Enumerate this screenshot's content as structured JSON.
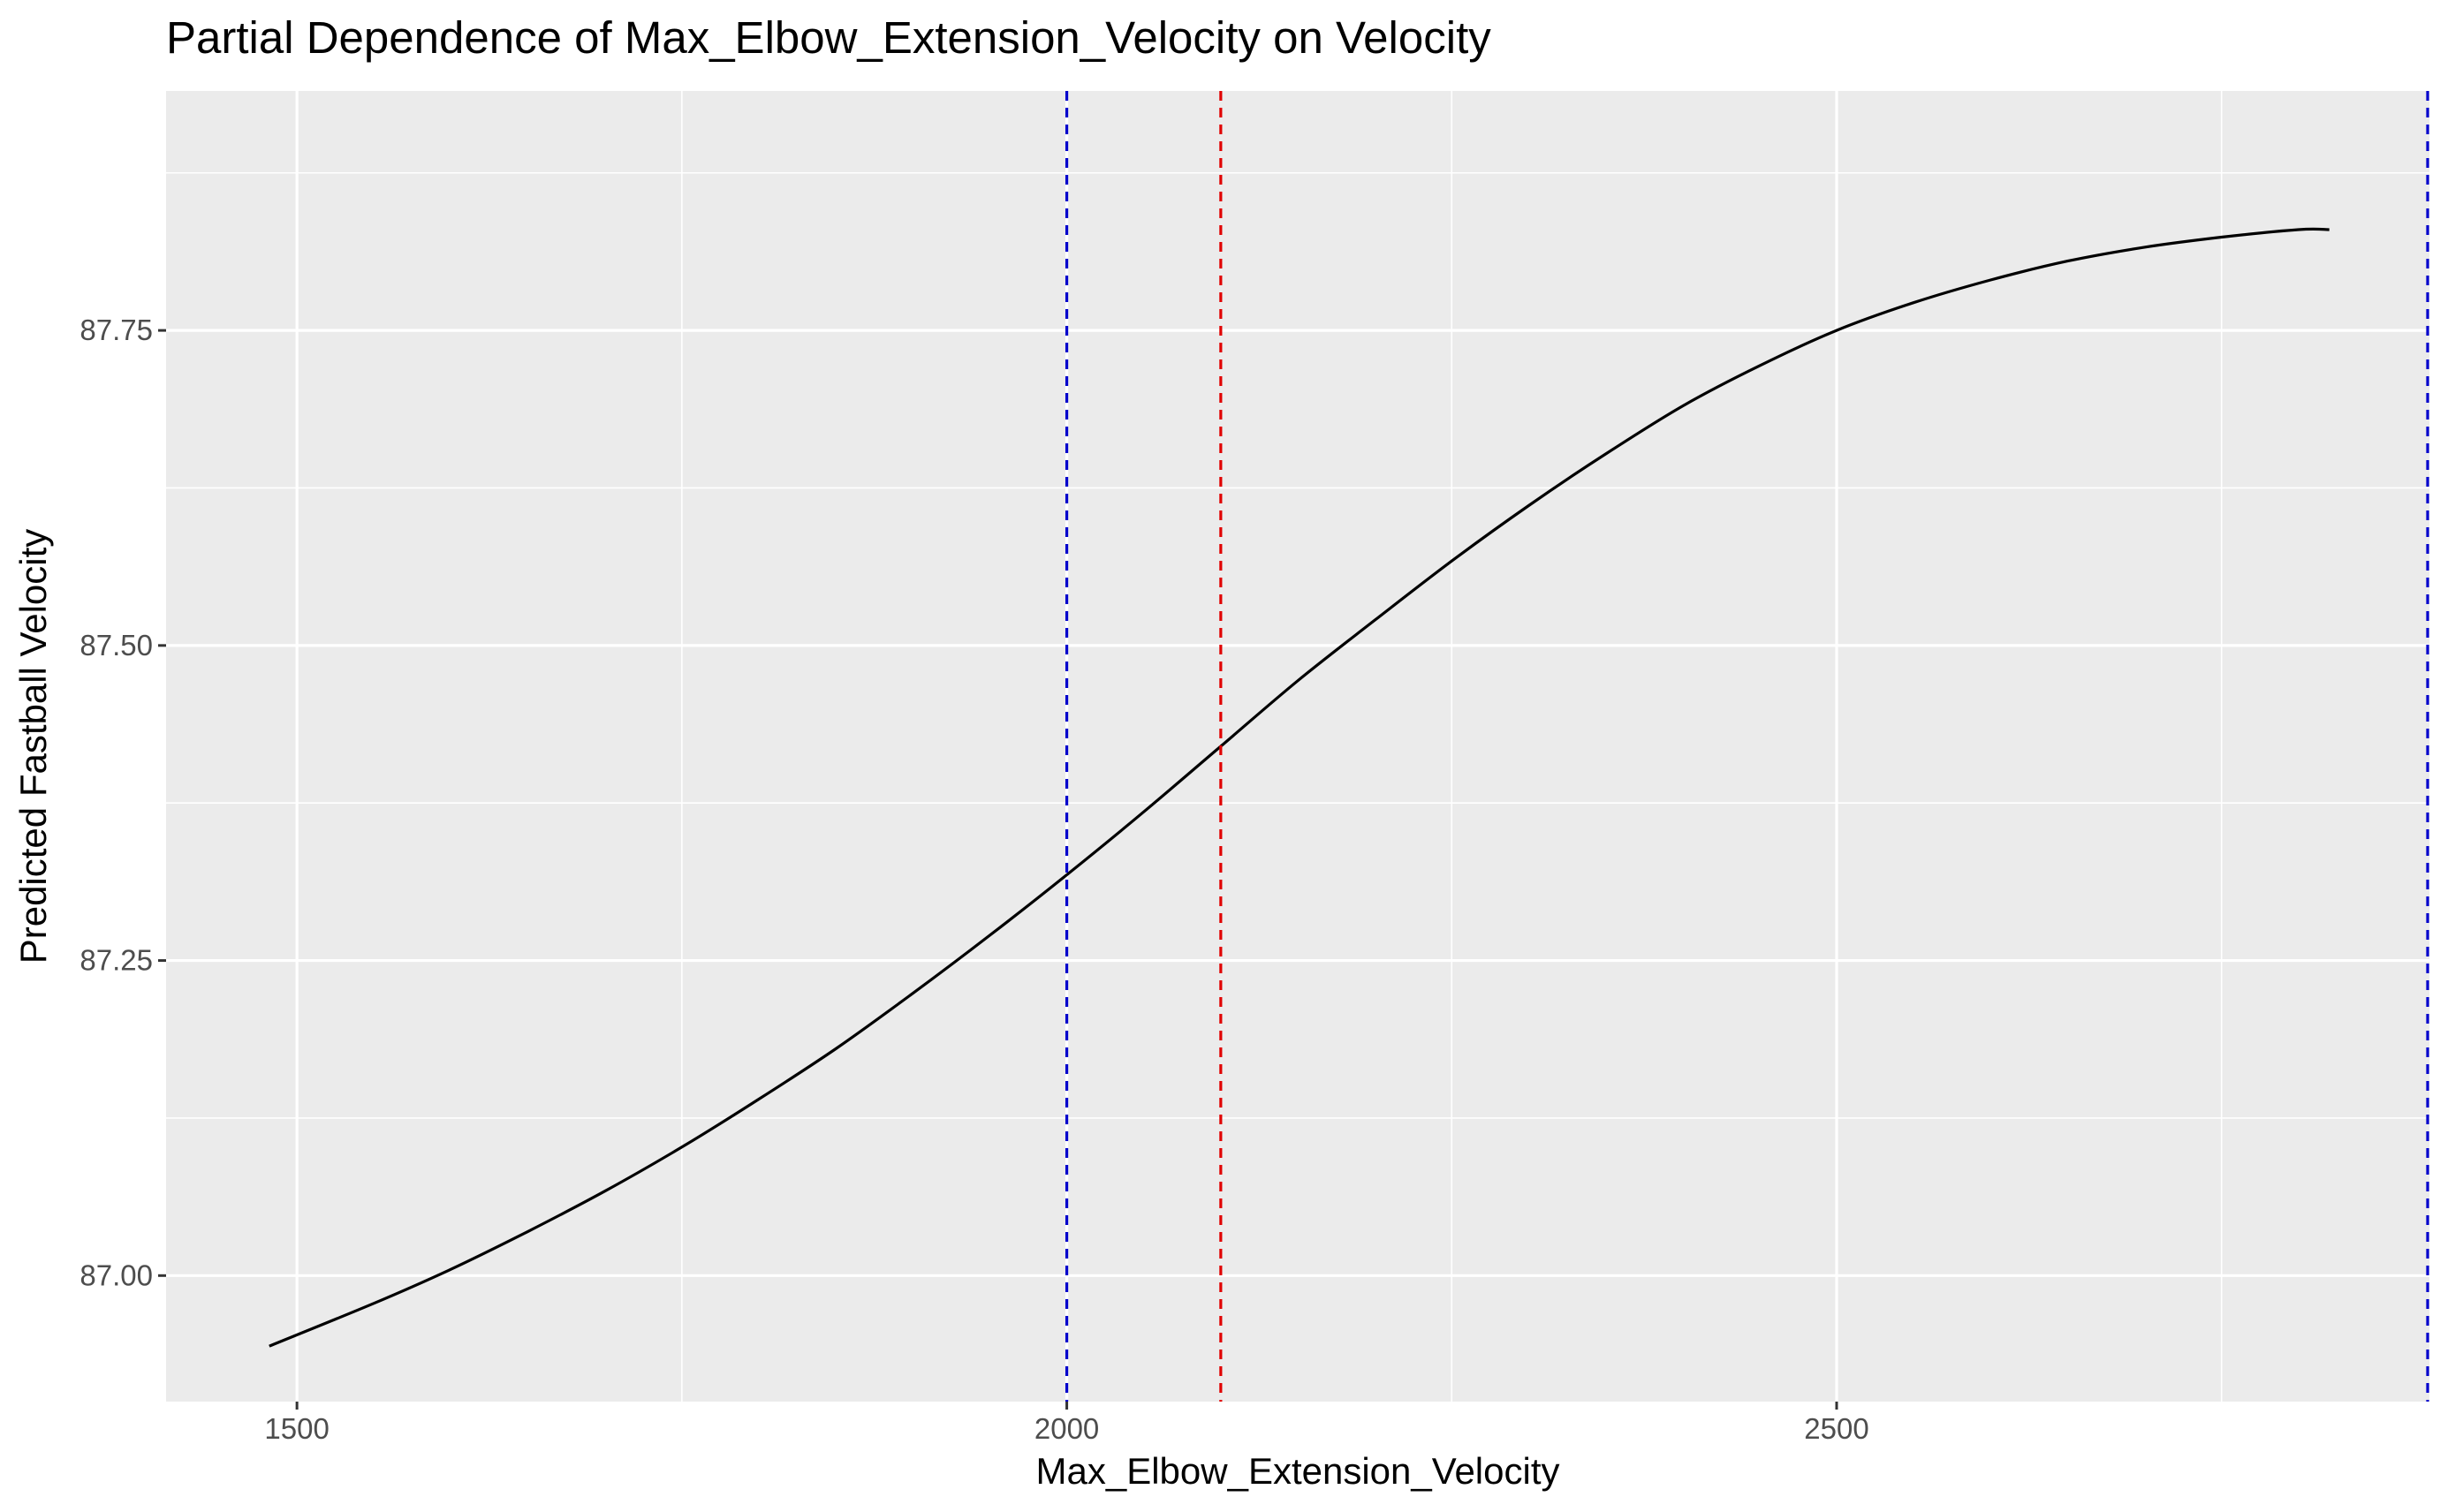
{
  "chart_data": {
    "type": "line",
    "title": "Partial Dependence of Max_Elbow_Extension_Velocity on Velocity",
    "xlabel": "Max_Elbow_Extension_Velocity",
    "ylabel": "Predicted Fastball Velocity",
    "xlim": [
      1415,
      2885
    ],
    "ylim": [
      86.9,
      87.94
    ],
    "x_ticks": [
      1500,
      2000,
      2500
    ],
    "x_tick_labels": [
      "1500",
      "2000",
      "2500"
    ],
    "x_minor_ticks": [
      1750,
      2250,
      2750
    ],
    "y_ticks": [
      87.0,
      87.25,
      87.5,
      87.75
    ],
    "y_tick_labels": [
      "87.00",
      "87.25",
      "87.50",
      "87.75"
    ],
    "y_minor_ticks": [
      87.125,
      87.375,
      87.625,
      87.875
    ],
    "grid": true,
    "series": [
      {
        "color": "#000000",
        "x": [
          1482,
          1550,
          1600,
          1650,
          1700,
          1750,
          1800,
          1850,
          1900,
          1950,
          2000,
          2050,
          2100,
          2150,
          2200,
          2250,
          2300,
          2350,
          2400,
          2450,
          2500,
          2550,
          2600,
          2650,
          2700,
          2750,
          2800,
          2820
        ],
        "y": [
          86.944,
          86.978,
          87.005,
          87.035,
          87.067,
          87.102,
          87.14,
          87.18,
          87.224,
          87.27,
          87.318,
          87.368,
          87.42,
          87.472,
          87.52,
          87.567,
          87.611,
          87.652,
          87.69,
          87.722,
          87.75,
          87.772,
          87.79,
          87.805,
          87.816,
          87.824,
          87.83,
          87.83
        ]
      }
    ],
    "vlines": [
      {
        "x": 2000,
        "color": "#0000cc",
        "style": "dashed"
      },
      {
        "x": 2100,
        "color": "#e00000",
        "style": "dashed"
      },
      {
        "x": 2885,
        "color": "#0000cc",
        "style": "dashed"
      }
    ],
    "colors": {
      "panel_background": "#ebebeb",
      "grid": "#ffffff",
      "line": "#000000"
    }
  }
}
